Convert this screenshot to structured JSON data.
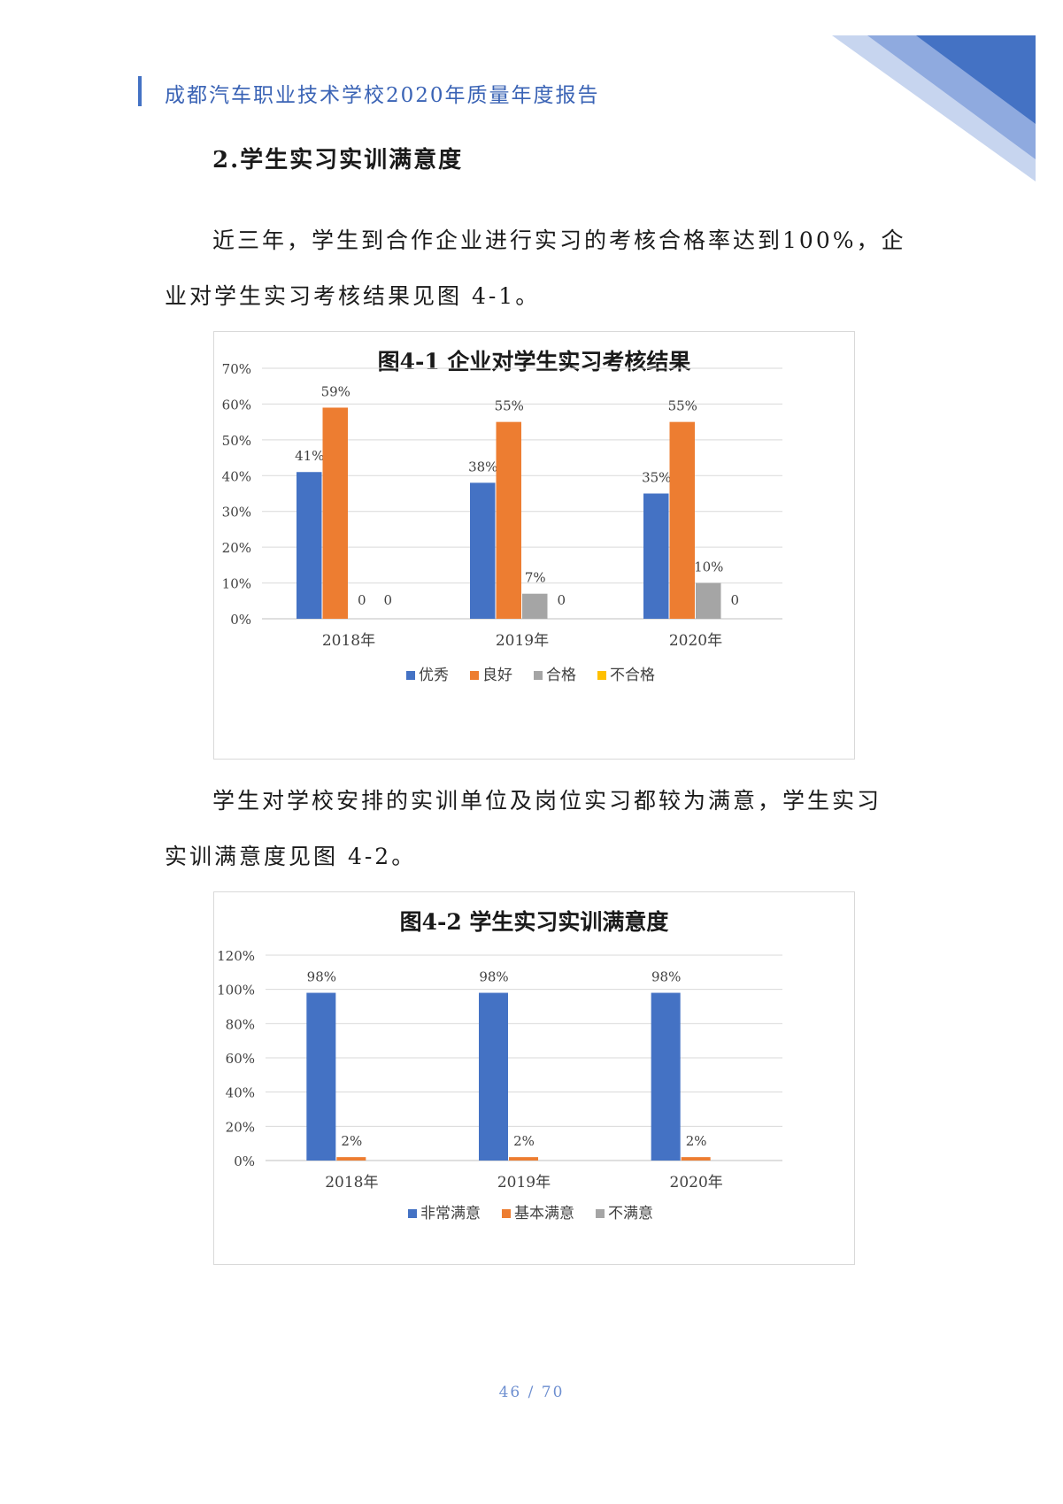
{
  "header": {
    "title": "成都汽车职业技术学校2020年质量年度报告"
  },
  "section_title": "2.学生实习实训满意度",
  "paragraphs": {
    "p1_line1": "近三年，学生到合作企业进行实习的考核合格率达到100%，企",
    "p1_line2": "业对学生实习考核结果见图 4-1。",
    "p2_line1": "学生对学校安排的实训单位及岗位实习都较为满意，学生实习",
    "p2_line2": "实训满意度见图 4-2。"
  },
  "colors": {
    "blue": "#4472C4",
    "orange": "#ED7D31",
    "gray": "#A5A5A5",
    "yellow": "#FFC000",
    "header_blue": "#3A63B5"
  },
  "chart_data": [
    {
      "type": "bar",
      "title": "图4-1 企业对学生实习考核结果",
      "categories": [
        "2018年",
        "2019年",
        "2020年"
      ],
      "series": [
        {
          "name": "优秀",
          "values": [
            41,
            38,
            35
          ],
          "labels": [
            "41%",
            "38%",
            "35%"
          ]
        },
        {
          "name": "良好",
          "values": [
            59,
            55,
            55
          ],
          "labels": [
            "59%",
            "55%",
            "55%"
          ]
        },
        {
          "name": "合格",
          "values": [
            0,
            7,
            10
          ],
          "labels": [
            "0",
            "7%",
            "10%"
          ]
        },
        {
          "name": "不合格",
          "values": [
            0,
            0,
            0
          ],
          "labels": [
            "0",
            "0",
            "0"
          ]
        }
      ],
      "yticks": [
        "0%",
        "10%",
        "20%",
        "30%",
        "40%",
        "50%",
        "60%",
        "70%"
      ],
      "ylim": [
        0,
        70
      ],
      "grid": true,
      "legend": "bottom"
    },
    {
      "type": "bar",
      "title": "图4-2 学生实习实训满意度",
      "categories": [
        "2018年",
        "2019年",
        "2020年"
      ],
      "series": [
        {
          "name": "非常满意",
          "values": [
            98,
            98,
            98
          ],
          "labels": [
            "98%",
            "98%",
            "98%"
          ]
        },
        {
          "name": "基本满意",
          "values": [
            2,
            2,
            2
          ],
          "labels": [
            "2%",
            "2%",
            "2%"
          ]
        },
        {
          "name": "不满意",
          "values": [
            0,
            0,
            0
          ],
          "labels": [
            "",
            "",
            ""
          ]
        }
      ],
      "yticks": [
        "0%",
        "20%",
        "40%",
        "60%",
        "80%",
        "100%",
        "120%"
      ],
      "ylim": [
        0,
        120
      ],
      "grid": true,
      "legend": "bottom"
    }
  ],
  "footer": {
    "page": "46 / 70"
  }
}
